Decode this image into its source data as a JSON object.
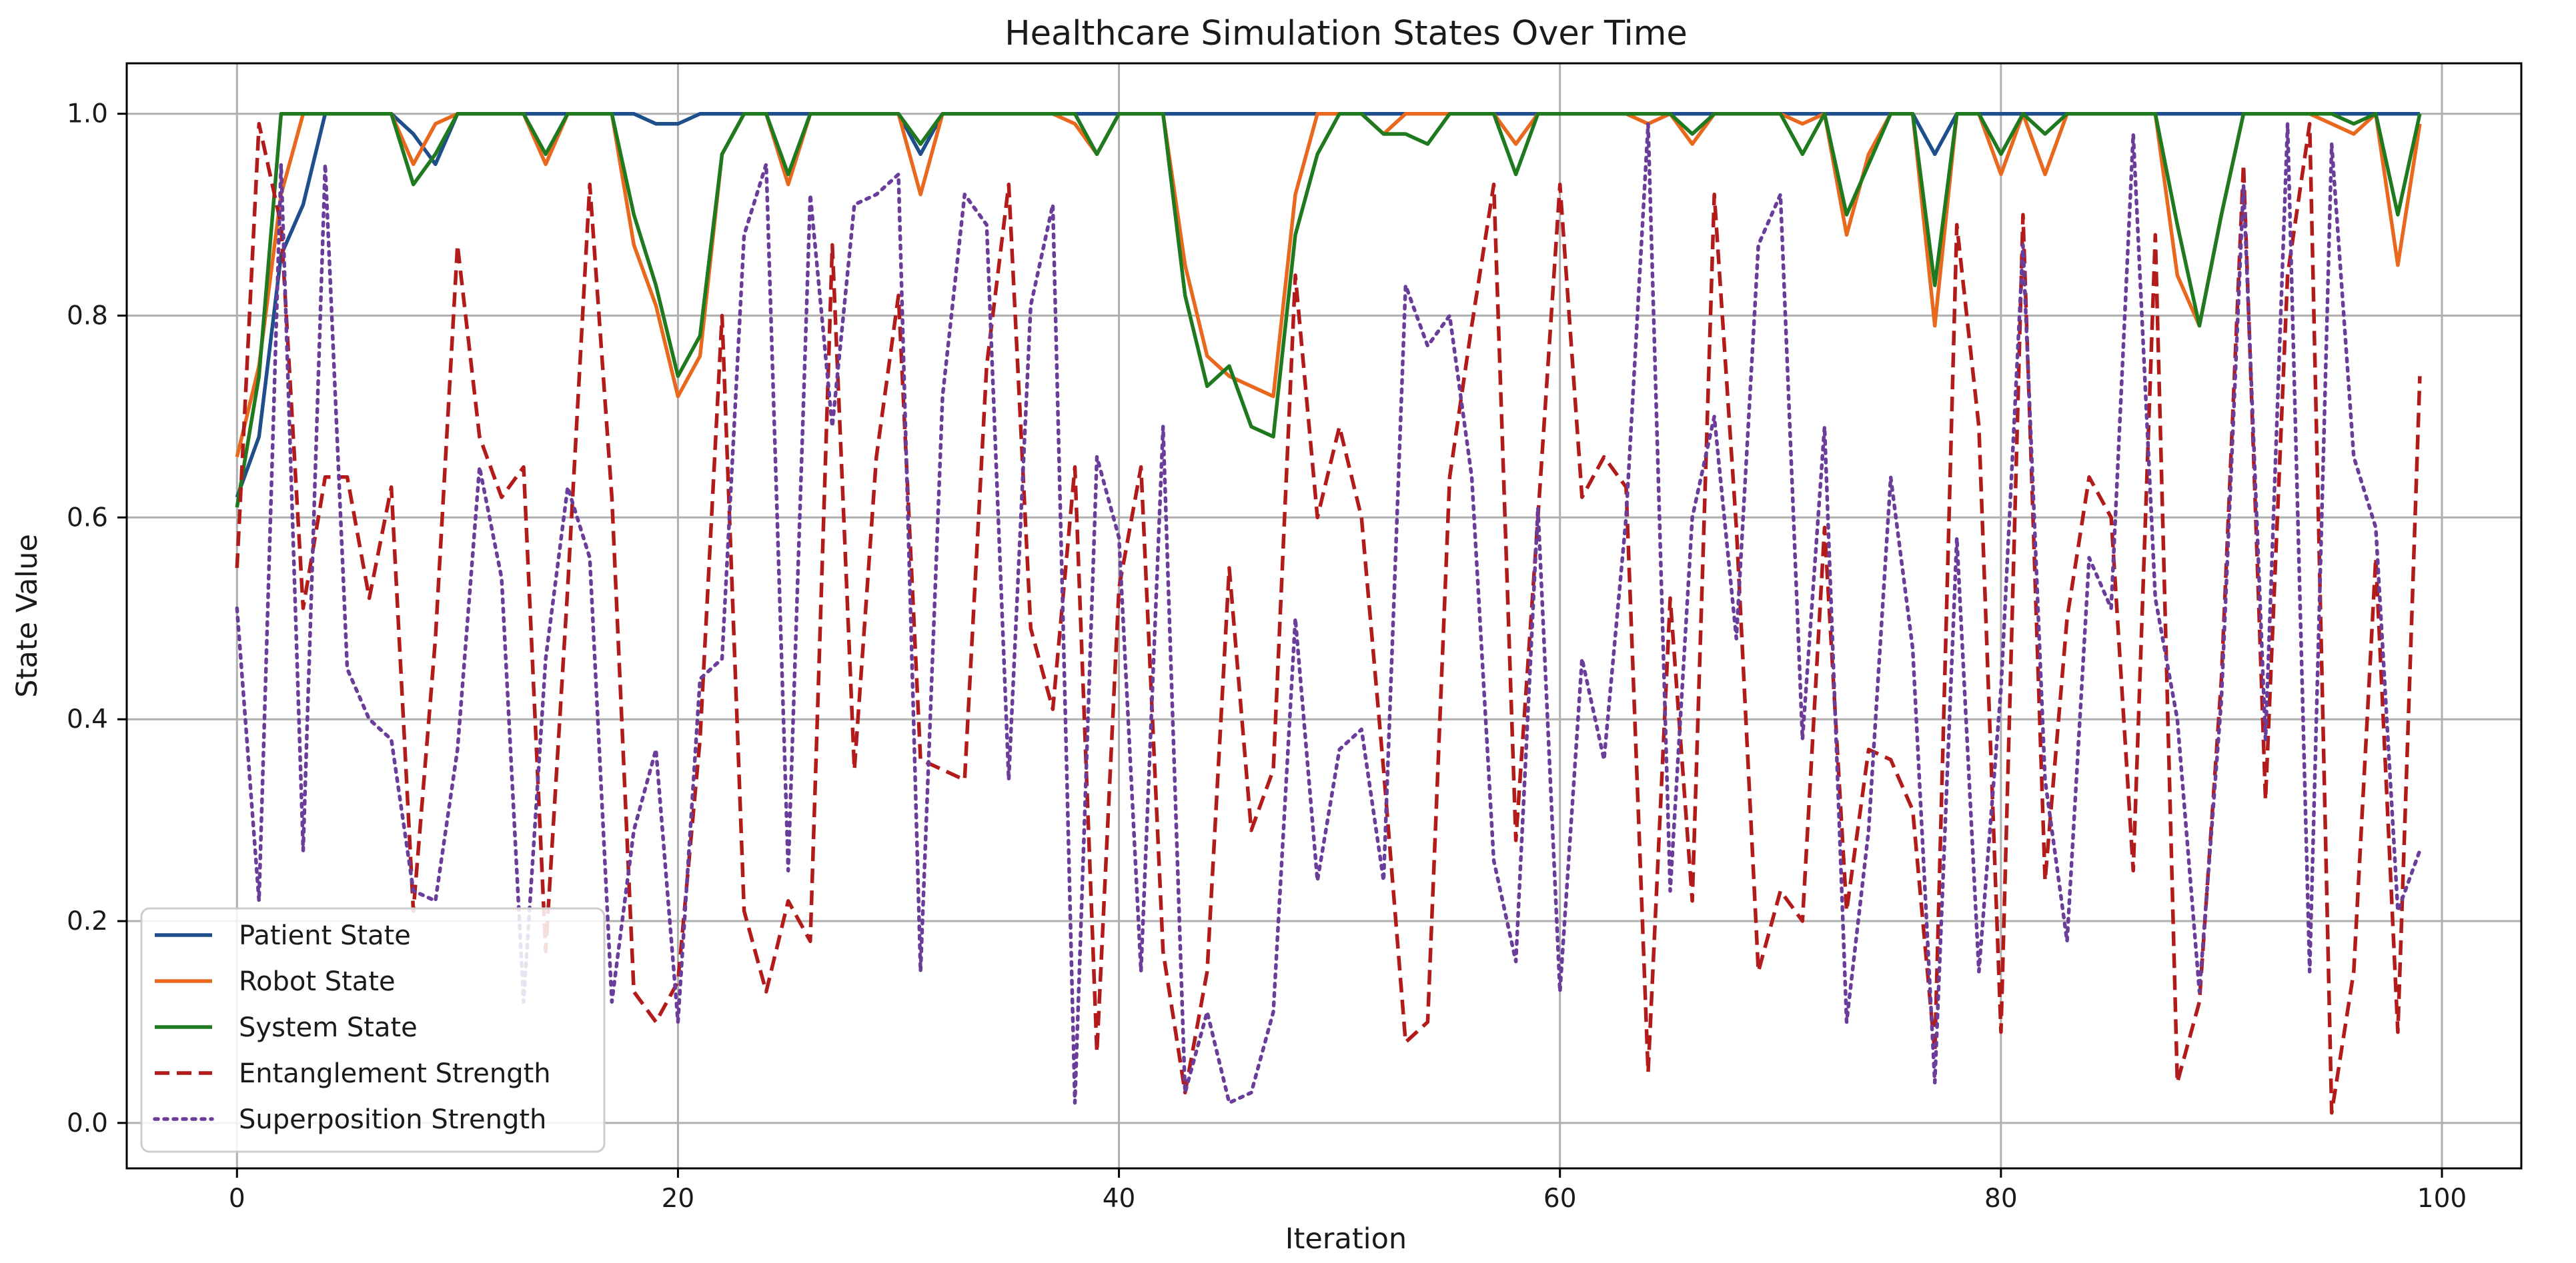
{
  "chart_data": {
    "type": "line",
    "title": "Healthcare Simulation States Over Time",
    "xlabel": "Iteration",
    "ylabel": "State Value",
    "xlim": [
      -5,
      103.6
    ],
    "ylim": [
      -0.045,
      1.05
    ],
    "xticks": [
      0,
      20,
      40,
      60,
      80,
      100
    ],
    "yticks": [
      0.0,
      0.2,
      0.4,
      0.6,
      0.8,
      1.0
    ],
    "xtick_labels": [
      "0",
      "20",
      "40",
      "60",
      "80",
      "100"
    ],
    "ytick_labels": [
      "0.0",
      "0.2",
      "0.4",
      "0.6",
      "0.8",
      "1.0"
    ],
    "grid": true,
    "legend_position": "lower-left",
    "series": [
      {
        "name": "Patient State",
        "color": "#1f4e8c",
        "style": "solid",
        "values": [
          0.62,
          0.68,
          0.86,
          0.91,
          1,
          1,
          1,
          1,
          0.98,
          0.95,
          1,
          1,
          1,
          1,
          1,
          1,
          1,
          1,
          1,
          0.99,
          0.99,
          1,
          1,
          1,
          1,
          1,
          1,
          1,
          1,
          1,
          1,
          0.96,
          1,
          1,
          1,
          1,
          1,
          1,
          1,
          1,
          1,
          1,
          1,
          1,
          1,
          1,
          1,
          1,
          1,
          1,
          1,
          1,
          1,
          1,
          1,
          1,
          1,
          1,
          1,
          1,
          1,
          1,
          1,
          1,
          1,
          1,
          1,
          1,
          1,
          1,
          1,
          1,
          1,
          1,
          1,
          1,
          1,
          0.96,
          1,
          1,
          1,
          1,
          1,
          1,
          1,
          1,
          1,
          1,
          1,
          1,
          1,
          1,
          1,
          1,
          1,
          1,
          1,
          1,
          1,
          1
        ]
      },
      {
        "name": "Robot State",
        "color": "#e8681e",
        "style": "solid",
        "values": [
          0.66,
          0.75,
          0.92,
          1,
          1,
          1,
          1,
          1,
          0.95,
          0.99,
          1,
          1,
          1,
          1,
          0.95,
          1,
          1,
          1,
          0.87,
          0.81,
          0.72,
          0.76,
          0.96,
          1,
          1,
          0.93,
          1,
          1,
          1,
          1,
          1,
          0.92,
          1,
          1,
          1,
          1,
          1,
          1,
          0.99,
          0.96,
          1,
          1,
          1,
          0.85,
          0.76,
          0.74,
          0.73,
          0.72,
          0.92,
          1,
          1,
          1,
          0.98,
          1,
          1,
          1,
          1,
          1,
          0.97,
          1,
          1,
          1,
          1,
          1,
          0.99,
          1,
          0.97,
          1,
          1,
          1,
          1,
          0.99,
          1,
          0.88,
          0.96,
          1,
          1,
          0.79,
          1,
          1,
          0.94,
          1,
          0.94,
          1,
          1,
          1,
          1,
          1,
          0.84,
          0.79,
          0.9,
          1,
          1,
          1,
          1,
          0.99,
          0.98,
          1,
          0.85,
          0.99
        ]
      },
      {
        "name": "System State",
        "color": "#1f7a1f",
        "style": "solid",
        "values": [
          0.61,
          0.74,
          1,
          1,
          1,
          1,
          1,
          1,
          0.93,
          0.96,
          1,
          1,
          1,
          1,
          0.96,
          1,
          1,
          1,
          0.9,
          0.83,
          0.74,
          0.78,
          0.96,
          1,
          1,
          0.94,
          1,
          1,
          1,
          1,
          1,
          0.97,
          1,
          1,
          1,
          1,
          1,
          1,
          1,
          0.96,
          1,
          1,
          1,
          0.82,
          0.73,
          0.75,
          0.69,
          0.68,
          0.88,
          0.96,
          1,
          1,
          0.98,
          0.98,
          0.97,
          1,
          1,
          1,
          0.94,
          1,
          1,
          1,
          1,
          1,
          1,
          1,
          0.98,
          1,
          1,
          1,
          1,
          0.96,
          1,
          0.9,
          0.95,
          1,
          1,
          0.83,
          1,
          1,
          0.96,
          1,
          0.98,
          1,
          1,
          1,
          1,
          1,
          0.89,
          0.79,
          0.9,
          1,
          1,
          1,
          1,
          1,
          0.99,
          1,
          0.9,
          1
        ]
      },
      {
        "name": "Entanglement Strength",
        "color": "#b31b1b",
        "style": "dashed",
        "values": [
          0.55,
          0.99,
          0.89,
          0.51,
          0.64,
          0.64,
          0.52,
          0.63,
          0.21,
          0.48,
          0.87,
          0.68,
          0.62,
          0.65,
          0.17,
          0.53,
          0.93,
          0.62,
          0.13,
          0.1,
          0.14,
          0.38,
          0.8,
          0.21,
          0.13,
          0.22,
          0.18,
          0.87,
          0.35,
          0.66,
          0.82,
          0.36,
          0.35,
          0.34,
          0.75,
          0.93,
          0.49,
          0.41,
          0.65,
          0.07,
          0.53,
          0.65,
          0.17,
          0.03,
          0.15,
          0.55,
          0.29,
          0.35,
          0.84,
          0.6,
          0.69,
          0.6,
          0.35,
          0.08,
          0.1,
          0.64,
          0.79,
          0.93,
          0.28,
          0.6,
          0.93,
          0.62,
          0.66,
          0.63,
          0.05,
          0.52,
          0.22,
          0.92,
          0.59,
          0.15,
          0.23,
          0.2,
          0.59,
          0.21,
          0.37,
          0.36,
          0.31,
          0.07,
          0.89,
          0.69,
          0.09,
          0.9,
          0.24,
          0.5,
          0.64,
          0.6,
          0.25,
          0.88,
          0.04,
          0.12,
          0.44,
          0.95,
          0.32,
          0.84,
          0.99,
          0.01,
          0.15,
          0.56,
          0.09,
          0.74
        ]
      },
      {
        "name": "Superposition Strength",
        "color": "#6a3d9a",
        "style": "dotted",
        "values": [
          0.51,
          0.22,
          0.95,
          0.27,
          0.95,
          0.45,
          0.4,
          0.38,
          0.23,
          0.22,
          0.37,
          0.65,
          0.54,
          0.12,
          0.46,
          0.63,
          0.56,
          0.12,
          0.29,
          0.37,
          0.1,
          0.44,
          0.46,
          0.88,
          0.95,
          0.25,
          0.92,
          0.69,
          0.91,
          0.92,
          0.94,
          0.15,
          0.72,
          0.92,
          0.89,
          0.34,
          0.81,
          0.91,
          0.02,
          0.66,
          0.58,
          0.15,
          0.69,
          0.03,
          0.11,
          0.02,
          0.03,
          0.11,
          0.5,
          0.24,
          0.37,
          0.39,
          0.24,
          0.83,
          0.77,
          0.8,
          0.64,
          0.26,
          0.16,
          0.61,
          0.13,
          0.46,
          0.36,
          0.6,
          0.99,
          0.23,
          0.6,
          0.7,
          0.48,
          0.87,
          0.92,
          0.38,
          0.69,
          0.1,
          0.29,
          0.64,
          0.47,
          0.04,
          0.58,
          0.15,
          0.43,
          0.87,
          0.34,
          0.18,
          0.56,
          0.51,
          0.98,
          0.52,
          0.4,
          0.13,
          0.42,
          0.93,
          0.38,
          0.99,
          0.15,
          0.97,
          0.66,
          0.59,
          0.21,
          0.27
        ]
      }
    ]
  }
}
